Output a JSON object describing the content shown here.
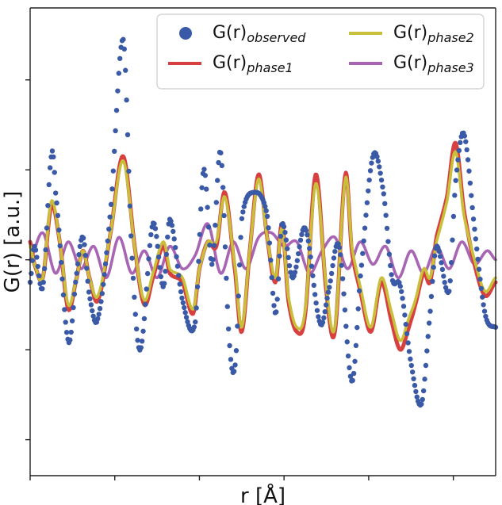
{
  "chart_data": {
    "type": "line",
    "xlabel": "r [Å]",
    "ylabel": "G(r) [a.u.]",
    "xlim": [
      0,
      11
    ],
    "ylim": [
      -4.8,
      5.6
    ],
    "grid": false,
    "legend": "top-right",
    "ticks_labeled": false,
    "series": [
      {
        "name": "G(r)observed",
        "label_main": "G(r)",
        "label_sub": "observed",
        "style": "dots",
        "color": "#3a5aa8",
        "x": [
          0.0,
          0.1,
          0.3,
          0.5,
          0.6,
          0.9,
          1.1,
          1.25,
          1.4,
          1.6,
          1.9,
          2.2,
          2.4,
          2.6,
          2.9,
          3.15,
          3.3,
          3.6,
          3.9,
          4.1,
          4.3,
          4.5,
          4.7,
          4.85,
          5.0,
          5.3,
          5.6,
          5.8,
          5.95,
          6.2,
          6.5,
          6.85,
          7.05,
          7.3,
          7.6,
          7.8,
          8.1,
          8.35,
          8.55,
          8.75,
          9.0,
          9.25,
          9.45,
          9.6,
          9.9,
          10.05,
          10.25,
          10.5,
          10.75,
          11.0
        ],
        "y": [
          -0.5,
          0.3,
          -0.6,
          2.3,
          1.5,
          -1.8,
          -0.3,
          0.5,
          -0.8,
          -1.3,
          1.1,
          4.9,
          0.2,
          -2.0,
          0.8,
          -0.6,
          0.9,
          -0.9,
          -1.4,
          2.0,
          -0.1,
          2.4,
          -1.7,
          -2.3,
          0.9,
          1.5,
          1.0,
          -1.2,
          0.8,
          -0.4,
          0.7,
          -1.4,
          -0.7,
          0.3,
          -2.7,
          -0.4,
          2.3,
          1.5,
          -0.4,
          -0.6,
          -2.3,
          -3.2,
          -1.2,
          0.3,
          -0.7,
          1.7,
          2.8,
          0.7,
          -1.2,
          -1.5
        ]
      },
      {
        "name": "G(r)phase1",
        "label_main": "G(r)",
        "label_sub": "phase1",
        "style": "line",
        "color": "#d84040",
        "x": [
          0.0,
          0.1,
          0.3,
          0.5,
          0.7,
          0.9,
          1.1,
          1.25,
          1.4,
          1.6,
          1.9,
          2.2,
          2.5,
          2.7,
          2.9,
          3.15,
          3.3,
          3.6,
          3.85,
          4.0,
          4.2,
          4.4,
          4.6,
          4.85,
          5.0,
          5.2,
          5.4,
          5.6,
          5.8,
          5.95,
          6.1,
          6.3,
          6.5,
          6.75,
          7.0,
          7.2,
          7.45,
          7.6,
          7.8,
          8.05,
          8.3,
          8.55,
          8.75,
          8.95,
          9.1,
          9.3,
          9.45,
          9.6,
          9.85,
          10.05,
          10.25,
          10.5,
          10.75,
          11.0
        ],
        "y": [
          0.4,
          -0.1,
          -0.4,
          1.2,
          0.4,
          -1.1,
          -0.4,
          0.2,
          -0.4,
          -0.9,
          0.6,
          2.3,
          0.1,
          -1.0,
          -0.4,
          0.3,
          -0.3,
          -0.5,
          -1.2,
          -0.2,
          0.4,
          0.3,
          1.5,
          -0.3,
          -1.6,
          0.3,
          1.9,
          0.5,
          -0.5,
          0.8,
          -0.9,
          -1.6,
          -1.2,
          1.9,
          -0.7,
          -1.6,
          1.9,
          0.2,
          -0.7,
          -1.6,
          -0.5,
          -1.4,
          -2.0,
          -1.5,
          -1.0,
          -0.3,
          -0.5,
          0.5,
          1.4,
          2.6,
          1.1,
          -0.1,
          -0.8,
          -0.5
        ]
      },
      {
        "name": "G(r)phase2",
        "label_main": "G(r)",
        "label_sub": "phase2",
        "style": "line",
        "color": "#c8c03a",
        "x": [
          0.0,
          0.1,
          0.3,
          0.5,
          0.7,
          0.9,
          1.1,
          1.25,
          1.4,
          1.6,
          1.9,
          2.2,
          2.5,
          2.7,
          2.9,
          3.15,
          3.3,
          3.6,
          3.85,
          4.0,
          4.2,
          4.4,
          4.6,
          4.85,
          5.0,
          5.2,
          5.4,
          5.6,
          5.8,
          5.95,
          6.1,
          6.3,
          6.5,
          6.75,
          7.0,
          7.2,
          7.45,
          7.6,
          7.8,
          8.05,
          8.3,
          8.55,
          8.75,
          8.95,
          9.1,
          9.3,
          9.45,
          9.6,
          9.85,
          10.05,
          10.25,
          10.5,
          10.75,
          11.0
        ],
        "y": [
          0.3,
          -0.1,
          -0.4,
          1.3,
          0.4,
          -1.0,
          -0.4,
          0.2,
          -0.4,
          -0.8,
          0.6,
          2.2,
          0.1,
          -0.9,
          -0.3,
          0.4,
          -0.2,
          -0.4,
          -1.1,
          -0.2,
          0.4,
          0.4,
          1.4,
          -0.2,
          -1.5,
          0.3,
          1.8,
          0.5,
          -0.4,
          0.7,
          -0.8,
          -1.5,
          -1.1,
          1.7,
          -0.6,
          -1.5,
          1.8,
          0.3,
          -0.6,
          -1.5,
          -0.4,
          -1.2,
          -1.8,
          -1.3,
          -0.9,
          -0.2,
          -0.4,
          0.4,
          1.3,
          2.4,
          1.0,
          0.0,
          -0.7,
          -0.4
        ]
      },
      {
        "name": "G(r)phase3",
        "label_main": "G(r)",
        "label_sub": "phase3",
        "style": "line",
        "color": "#a865b4",
        "x": [
          0.0,
          0.3,
          0.6,
          0.9,
          1.2,
          1.5,
          1.8,
          2.1,
          2.4,
          2.7,
          3.0,
          3.3,
          3.6,
          3.9,
          4.2,
          4.5,
          4.8,
          5.1,
          5.4,
          5.7,
          6.0,
          6.3,
          6.6,
          6.9,
          7.2,
          7.5,
          7.8,
          8.1,
          8.4,
          8.7,
          9.0,
          9.3,
          9.6,
          9.9,
          10.2,
          10.5,
          10.8,
          11.0
        ],
        "y": [
          0.0,
          0.6,
          -0.3,
          0.4,
          -0.2,
          0.3,
          -0.4,
          0.5,
          -0.3,
          0.2,
          -0.4,
          0.3,
          -0.2,
          0.1,
          0.8,
          -0.3,
          0.4,
          -0.2,
          0.5,
          0.6,
          0.3,
          0.4,
          -0.3,
          0.2,
          0.5,
          -0.2,
          0.4,
          -0.1,
          0.3,
          -0.4,
          0.2,
          -0.3,
          0.3,
          -0.2,
          0.4,
          -0.1,
          0.2,
          0.0
        ]
      }
    ]
  }
}
